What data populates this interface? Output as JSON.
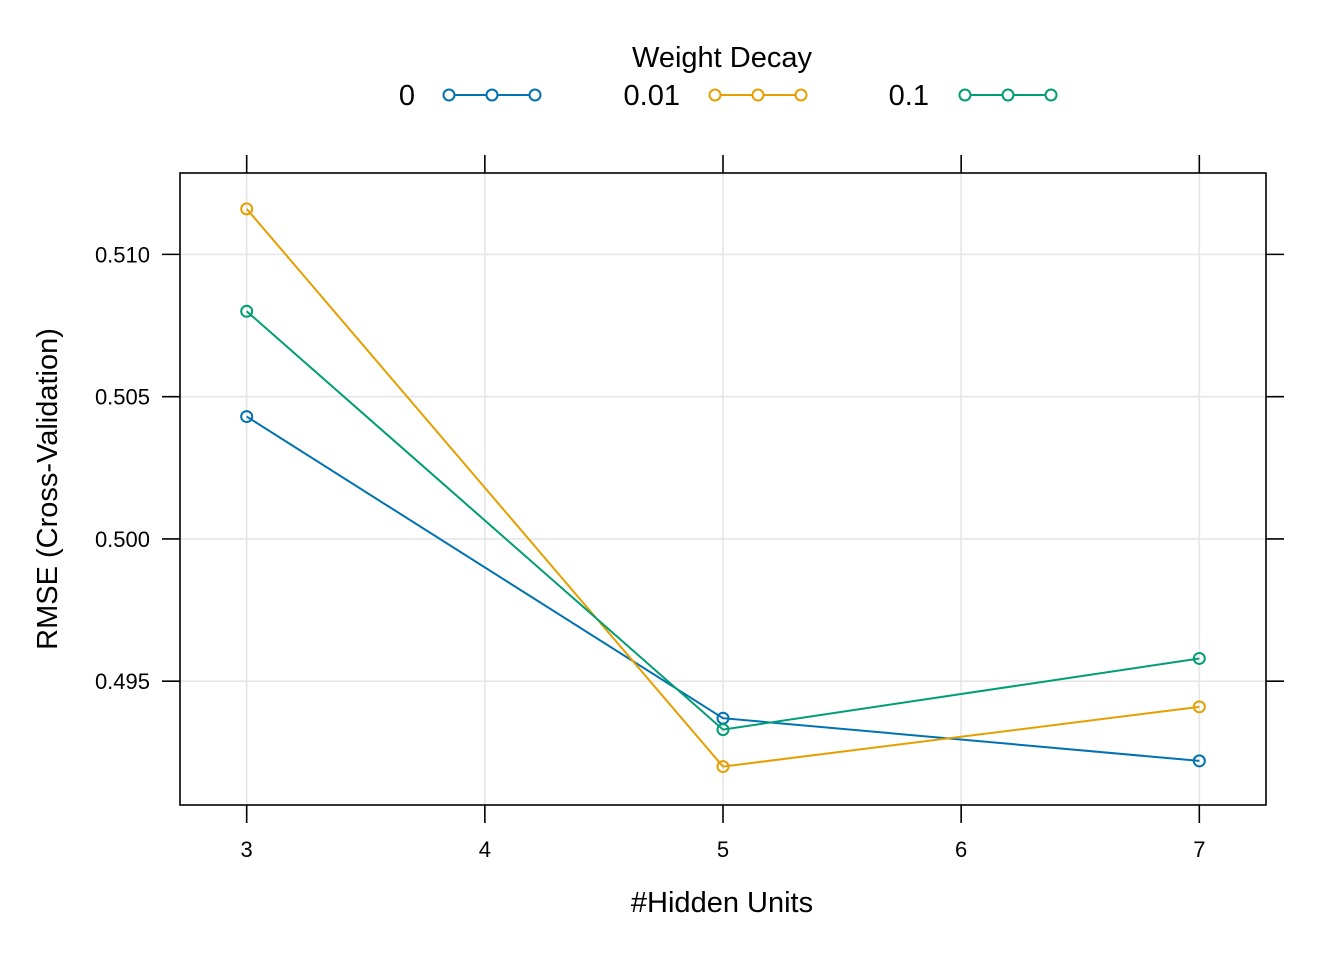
{
  "chart_data": {
    "type": "line",
    "title": "",
    "xlabel": "#Hidden Units",
    "ylabel": "RMSE (Cross-Validation)",
    "xlim": [
      2.72,
      7.28
    ],
    "ylim": [
      0.49065,
      0.51286
    ],
    "x_ticks": [
      3,
      4,
      5,
      6,
      7
    ],
    "x_tick_labels": [
      "3",
      "4",
      "5",
      "6",
      "7"
    ],
    "y_ticks": [
      0.495,
      0.5,
      0.505,
      0.51
    ],
    "y_tick_labels": [
      "0.495",
      "0.500",
      "0.505",
      "0.510"
    ],
    "grid": true,
    "legend": {
      "title": "Weight Decay",
      "placement": "top"
    },
    "x": [
      3,
      5,
      7
    ],
    "series": [
      {
        "name": "0",
        "color": "#0072B2",
        "values": [
          0.5043,
          0.4937,
          0.4922
        ]
      },
      {
        "name": "0.01",
        "color": "#E69F00",
        "values": [
          0.5116,
          0.492,
          0.4941
        ]
      },
      {
        "name": "0.1",
        "color": "#009E73",
        "values": [
          0.508,
          0.4933,
          0.4958
        ]
      }
    ]
  }
}
